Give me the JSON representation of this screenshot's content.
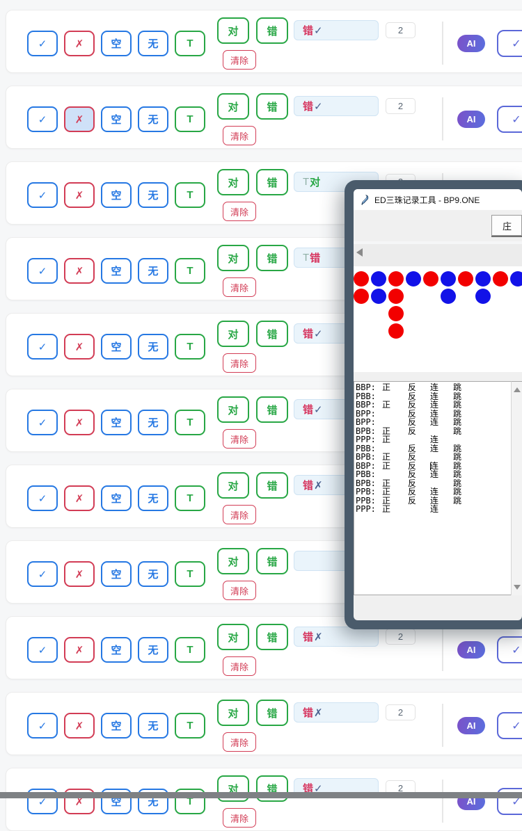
{
  "controls": {
    "check": "✓",
    "cross": "✗",
    "empty": "空",
    "none": "无",
    "t": "T",
    "correct": "对",
    "wrong": "错",
    "clear": "清除",
    "ai": "AI",
    "confirm": "✓"
  },
  "palette": {
    "crimson": "#d6345e",
    "navy": "#49618f",
    "teal": "#8fb0a6",
    "green": "#28a745",
    "bead_red": "#f20000",
    "bead_blue": "#1212e8",
    "blue_accent": "#2678e3",
    "indigo_accent": "#5b68d8"
  },
  "rows": [
    {
      "cross_selected": false,
      "input_parts": [
        [
          "错",
          "crimson"
        ],
        [
          "✓",
          "navy"
        ]
      ],
      "count": "2"
    },
    {
      "cross_selected": true,
      "input_parts": [
        [
          "错",
          "crimson"
        ],
        [
          "✓",
          "navy"
        ]
      ],
      "count": "2"
    },
    {
      "cross_selected": false,
      "input_parts": [
        [
          "T",
          "teal"
        ],
        [
          "对",
          "green"
        ]
      ],
      "count": "2"
    },
    {
      "cross_selected": false,
      "input_parts": [
        [
          "T",
          "teal"
        ],
        [
          "错",
          "crimson"
        ]
      ],
      "count": ""
    },
    {
      "cross_selected": false,
      "input_parts": [
        [
          "错",
          "crimson"
        ],
        [
          "✓",
          "navy"
        ]
      ],
      "count": ""
    },
    {
      "cross_selected": false,
      "input_parts": [
        [
          "错",
          "crimson"
        ],
        [
          "✓",
          "navy"
        ]
      ],
      "count": ""
    },
    {
      "cross_selected": false,
      "input_parts": [
        [
          "错",
          "crimson"
        ],
        [
          "✗",
          "navy"
        ]
      ],
      "count": ""
    },
    {
      "cross_selected": false,
      "input_parts": [],
      "count": ""
    },
    {
      "cross_selected": false,
      "input_parts": [
        [
          "错",
          "crimson"
        ],
        [
          "✗",
          "navy"
        ]
      ],
      "count": "2"
    },
    {
      "cross_selected": false,
      "input_parts": [
        [
          "错",
          "crimson"
        ],
        [
          "✗",
          "navy"
        ]
      ],
      "count": "2"
    },
    {
      "cross_selected": false,
      "input_parts": [
        [
          "错",
          "crimson"
        ],
        [
          "✓",
          "navy"
        ]
      ],
      "count": "2"
    }
  ],
  "window": {
    "title": "ED三珠记录工具 - BP9.ONE",
    "banker_button": "庄",
    "bead_grid": [
      "RBRBRBRBRB",
      "RBR..B.B..",
      "..R.......",
      "..R......."
    ],
    "lines": [
      {
        "label": "BBP:",
        "c1": "正",
        "c2": "反",
        "c3": "连",
        "c4": "跳",
        "cursor": false
      },
      {
        "label": "PBB:",
        "c1": "",
        "c2": "反",
        "c3": "连",
        "c4": "跳",
        "cursor": false
      },
      {
        "label": "BBP:",
        "c1": "正",
        "c2": "反",
        "c3": "连",
        "c4": "跳",
        "cursor": false
      },
      {
        "label": "BPP:",
        "c1": "",
        "c2": "反",
        "c3": "连",
        "c4": "跳",
        "cursor": false
      },
      {
        "label": "BPP:",
        "c1": "",
        "c2": "反",
        "c3": "连",
        "c4": "跳",
        "cursor": false
      },
      {
        "label": "BPB:",
        "c1": "正",
        "c2": "反",
        "c3": "",
        "c4": "跳",
        "cursor": false
      },
      {
        "label": "PPP:",
        "c1": "正",
        "c2": "",
        "c3": "连",
        "c4": "",
        "cursor": false
      },
      {
        "label": "PBB:",
        "c1": "",
        "c2": "反",
        "c3": "连",
        "c4": "跳",
        "cursor": false
      },
      {
        "label": "BPB:",
        "c1": "正",
        "c2": "反",
        "c3": "",
        "c4": "跳",
        "cursor": false
      },
      {
        "label": "BBP:",
        "c1": "正",
        "c2": "反",
        "c3": "连",
        "c4": "跳",
        "cursor": true
      },
      {
        "label": "PBB:",
        "c1": "",
        "c2": "反",
        "c3": "连",
        "c4": "跳",
        "cursor": false
      },
      {
        "label": "BPB:",
        "c1": "正",
        "c2": "反",
        "c3": "",
        "c4": "跳",
        "cursor": false
      },
      {
        "label": "PPB:",
        "c1": "正",
        "c2": "反",
        "c3": "连",
        "c4": "跳",
        "cursor": false
      },
      {
        "label": "PPB:",
        "c1": "正",
        "c2": "反",
        "c3": "连",
        "c4": "跳",
        "cursor": false
      },
      {
        "label": "PPP:",
        "c1": "正",
        "c2": "",
        "c3": "连",
        "c4": "",
        "cursor": false
      }
    ]
  }
}
